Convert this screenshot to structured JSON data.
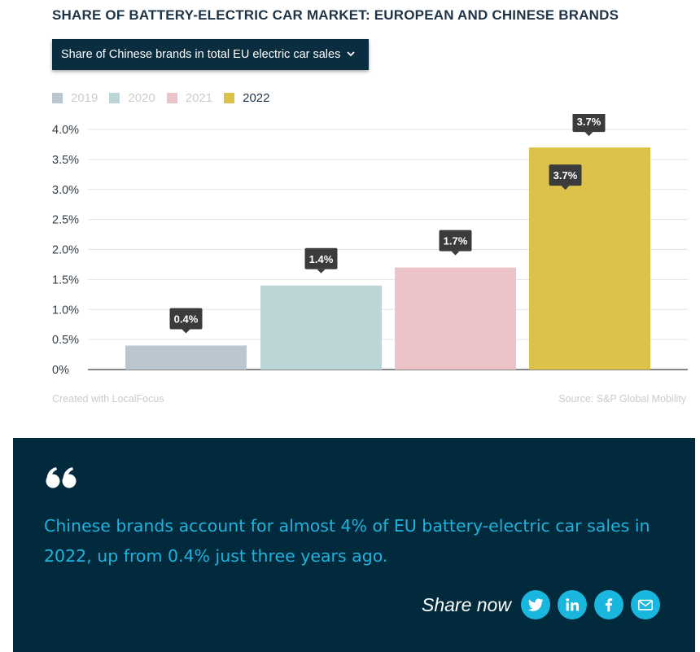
{
  "title": "SHARE OF BATTERY-ELECTRIC CAR MARKET: EUROPEAN AND CHINESE BRANDS",
  "dropdown": {
    "selected": "Share of Chinese brands in total EU electric car sales"
  },
  "chart_data": {
    "type": "bar",
    "categories": [
      "2019",
      "2020",
      "2021",
      "2022"
    ],
    "values": [
      0.4,
      1.4,
      1.7,
      3.7
    ],
    "data_labels": [
      "0.4%",
      "1.4%",
      "1.7%",
      "3.7%"
    ],
    "extra_label_2022": "3.7%",
    "colors": [
      "#bac7d1",
      "#bcd6d8",
      "#ecc4c8",
      "#dcc24b"
    ],
    "highlighted": "2022",
    "ylim": [
      0,
      4.0
    ],
    "yticks": [
      {
        "value": 4.0,
        "label": "4.0%"
      },
      {
        "value": 3.5,
        "label": "3.5%"
      },
      {
        "value": 3.0,
        "label": "3.0%"
      },
      {
        "value": 2.5,
        "label": "2.5%"
      },
      {
        "value": 2.0,
        "label": "2.0%"
      },
      {
        "value": 1.5,
        "label": "1.5%"
      },
      {
        "value": 1.0,
        "label": "1.0%"
      },
      {
        "value": 0.5,
        "label": "0.5%"
      },
      {
        "value": 0,
        "label": "0%"
      }
    ],
    "grid": true,
    "legend_position": "top-left",
    "xlabel": "",
    "ylabel": ""
  },
  "footer": {
    "credit": "Created with LocalFocus",
    "source": "Source: S&P Global Mobility"
  },
  "quote": {
    "text": "Chinese brands account for almost 4% of EU battery-electric car sales in 2022, up from 0.4% just three years ago.",
    "share_label": "Share now",
    "share_buttons": [
      {
        "icon": "twitter-icon"
      },
      {
        "icon": "linkedin-icon"
      },
      {
        "icon": "facebook-icon"
      },
      {
        "icon": "email-icon"
      }
    ]
  },
  "colors": {
    "quote_bg": "#022a3d",
    "accent": "#19b7dd",
    "dropdown_bg": "#0b2d40",
    "tooltip_bg": "#3b3b3b"
  }
}
